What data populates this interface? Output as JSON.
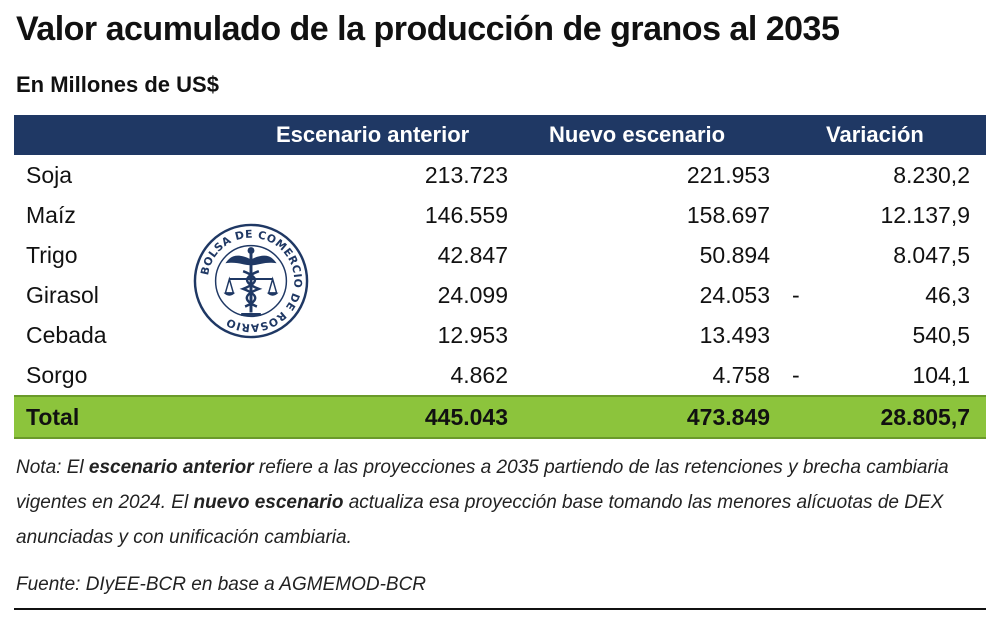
{
  "title": "Valor acumulado de la producción de granos al 2035",
  "subtitle": "En Millones de US$",
  "table": {
    "headers": [
      "",
      "Escenario anterior",
      "Nuevo escenario",
      "Variación"
    ],
    "rows": [
      {
        "name": "Soja",
        "anterior": "213.723",
        "nuevo": "221.953",
        "dash": "",
        "variacion": "8.230,2"
      },
      {
        "name": "Maíz",
        "anterior": "146.559",
        "nuevo": "158.697",
        "dash": "",
        "variacion": "12.137,9"
      },
      {
        "name": "Trigo",
        "anterior": "42.847",
        "nuevo": "50.894",
        "dash": "",
        "variacion": "8.047,5"
      },
      {
        "name": "Girasol",
        "anterior": "24.099",
        "nuevo": "24.053",
        "dash": "-",
        "variacion": "46,3"
      },
      {
        "name": "Cebada",
        "anterior": "12.953",
        "nuevo": "13.493",
        "dash": "",
        "variacion": "540,5"
      },
      {
        "name": "Sorgo",
        "anterior": "4.862",
        "nuevo": "4.758",
        "dash": "-",
        "variacion": "104,1"
      }
    ],
    "total": {
      "name": "Total",
      "anterior": "445.043",
      "nuevo": "473.849",
      "variacion": "28.805,7"
    }
  },
  "logo": {
    "text": "BOLSA DE COMERCIO DE ROSARIO"
  },
  "note": {
    "prefix": "Nota: El ",
    "term1": "escenario anterior",
    "mid": " refiere a las proyecciones a 2035 partiendo de las retenciones y brecha cambiaria vigentes en 2024. El ",
    "term2": "nuevo escenario",
    "suffix": " actualiza esa proyección base tomando las menores alícuotas de DEX anunciadas y con unificación cambiaria."
  },
  "source": "Fuente: DIyEE-BCR en base a AGMEMOD-BCR",
  "colors": {
    "header": "#1f3864",
    "total": "#8cc43c",
    "logo": "#1f3864"
  }
}
